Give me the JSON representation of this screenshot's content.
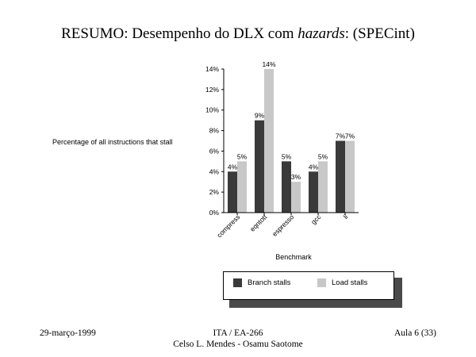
{
  "slide": {
    "title_pre": "RESUMO: Desempenho do DLX com ",
    "title_em": "hazards",
    "title_post": ": (SPECint)",
    "footer_left": "29-março-1999",
    "footer_center_1": "ITA / EA-266",
    "footer_center_2": "Celso L. Mendes - Osamu Saotome",
    "footer_right": "Aula 6 (33)"
  },
  "chart_data": {
    "type": "bar",
    "title": "",
    "ylabel": "Percentage of all instructions that stall",
    "xlabel": "Benchmark",
    "categories": [
      "compress",
      "eqntott",
      "espresso",
      "gcc",
      "li"
    ],
    "series": [
      {
        "name": "Branch stalls",
        "color": "#3a3a3a",
        "values": [
          4,
          9,
          5,
          4,
          7
        ],
        "labels": [
          "4%",
          "9%",
          "5%",
          "4%",
          "7%"
        ]
      },
      {
        "name": "Load stalls",
        "color": "#c8c8c8",
        "values": [
          5,
          14,
          3,
          5,
          7
        ],
        "labels": [
          "5%",
          "14%",
          "3%",
          "5%",
          "7%"
        ]
      }
    ],
    "ylim": [
      0,
      14
    ],
    "yticks": [
      "0%",
      "2%",
      "4%",
      "6%",
      "8%",
      "10%",
      "12%",
      "14%"
    ],
    "grid": false,
    "legend": "bottom"
  }
}
